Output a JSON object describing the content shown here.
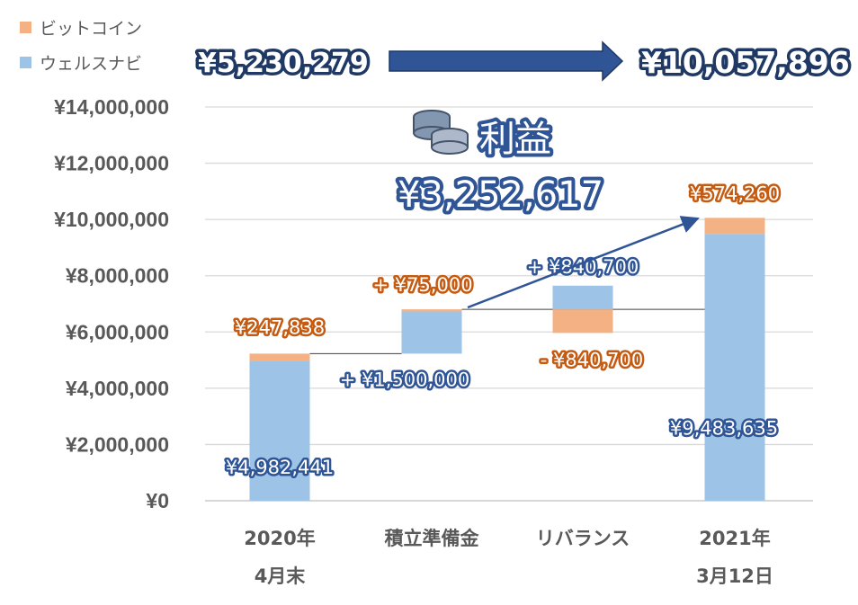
{
  "legend": [
    {
      "label": "ビットコイン",
      "color": "#f4b183"
    },
    {
      "label": "ウェルスナビ",
      "color": "#9dc3e6"
    }
  ],
  "totals": {
    "start": "¥5,230,279",
    "end": "¥10,057,896"
  },
  "profit": {
    "label": "利益",
    "value": "¥3,252,617",
    "icon": "coins-icon"
  },
  "colors": {
    "wealthnavi": "#9dc3e6",
    "bitcoin": "#f4b183",
    "arrow": "#2f5597"
  },
  "chart_data": {
    "type": "bar",
    "subtype": "waterfall-stacked",
    "categories": [
      {
        "line1": "2020年",
        "line2": "4月末"
      },
      {
        "line1": "積立準備金",
        "line2": ""
      },
      {
        "line1": "リバランス",
        "line2": ""
      },
      {
        "line1": "2021年",
        "line2": "3月12日"
      }
    ],
    "ylim": [
      0,
      14000000
    ],
    "yticks": [
      0,
      2000000,
      4000000,
      6000000,
      8000000,
      10000000,
      12000000,
      14000000
    ],
    "ytick_labels": [
      "¥0",
      "¥2,000,000",
      "¥4,000,000",
      "¥6,000,000",
      "¥8,000,000",
      "¥10,000,000",
      "¥12,000,000",
      "¥14,000,000"
    ],
    "segments": [
      {
        "category": 0,
        "series": "wealthnavi",
        "from": 0,
        "to": 4982441,
        "label": "¥4,982,441",
        "label_style": "blue"
      },
      {
        "category": 0,
        "series": "bitcoin",
        "from": 4982441,
        "to": 5230279,
        "label": "¥247,838",
        "label_style": "orange"
      },
      {
        "category": 1,
        "series": "wealthnavi",
        "from": 5230279,
        "to": 6730279,
        "label": "+ ¥1,500,000",
        "label_style": "blue"
      },
      {
        "category": 1,
        "series": "bitcoin",
        "from": 6730279,
        "to": 6805279,
        "label": "+ ¥75,000",
        "label_style": "orange"
      },
      {
        "category": 2,
        "series": "bitcoin",
        "from": 5964579,
        "to": 6805279,
        "label": "- ¥840,700",
        "label_style": "orange"
      },
      {
        "category": 2,
        "series": "wealthnavi",
        "from": 6805279,
        "to": 7645979,
        "label": "+ ¥840,700",
        "label_style": "blue"
      },
      {
        "category": 3,
        "series": "wealthnavi",
        "from": 0,
        "to": 9483635,
        "label": "¥9,483,635",
        "label_style": "blue"
      },
      {
        "category": 3,
        "series": "bitcoin",
        "from": 9483635,
        "to": 10057896,
        "label": "¥574,260",
        "label_style": "orange"
      }
    ],
    "connectors": [
      {
        "from_category": 0,
        "to_category": 1,
        "value": 5230279
      },
      {
        "from_category": 1,
        "to_category": 3,
        "value": 6805279
      }
    ],
    "grid": true
  }
}
